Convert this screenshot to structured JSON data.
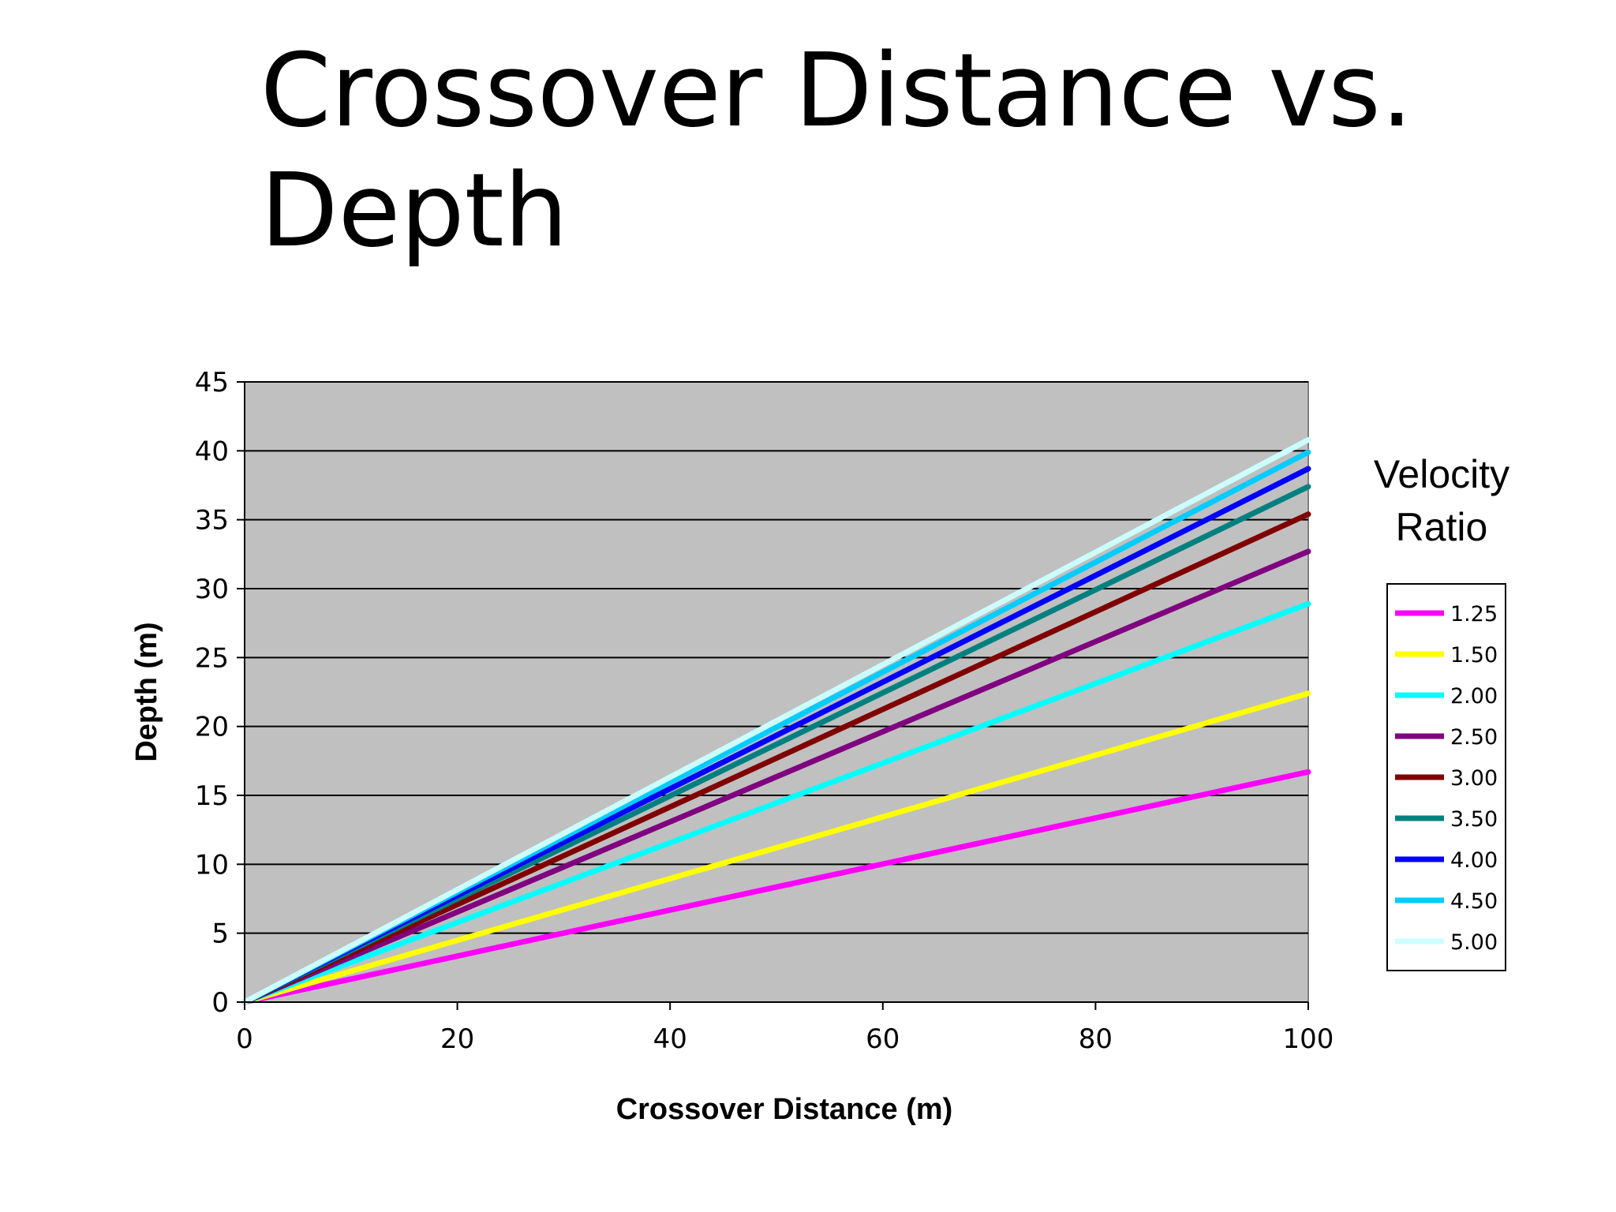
{
  "slide": {
    "title": "Crossover Distance vs. Depth"
  },
  "chart_data": {
    "type": "line",
    "title": "",
    "xlabel": "Crossover Distance (m)",
    "ylabel": "Depth (m)",
    "xlim": [
      0,
      100
    ],
    "ylim": [
      0,
      45
    ],
    "x_ticks": [
      "0",
      "20",
      "40",
      "60",
      "80",
      "100"
    ],
    "y_ticks": [
      "0",
      "5",
      "10",
      "15",
      "20",
      "25",
      "30",
      "35",
      "40",
      "45"
    ],
    "grid": "horizontal major gridlines",
    "plot_background": "#c0c0c0",
    "legend_title": [
      "Velocity",
      "Ratio"
    ],
    "legend_position": "right",
    "x": [
      0,
      100
    ],
    "series": [
      {
        "name": "1.25",
        "values": [
          0,
          16.7
        ],
        "color": "#ff00ff"
      },
      {
        "name": "1.50",
        "values": [
          0,
          22.4
        ],
        "color": "#ffff00"
      },
      {
        "name": "2.00",
        "values": [
          0,
          28.9
        ],
        "color": "#00ffff"
      },
      {
        "name": "2.50",
        "values": [
          0,
          32.7
        ],
        "color": "#800080"
      },
      {
        "name": "3.00",
        "values": [
          0,
          35.4
        ],
        "color": "#800000"
      },
      {
        "name": "3.50",
        "values": [
          0,
          37.4
        ],
        "color": "#008080"
      },
      {
        "name": "4.00",
        "values": [
          0,
          38.7
        ],
        "color": "#0000ff"
      },
      {
        "name": "4.50",
        "values": [
          0,
          39.9
        ],
        "color": "#00ccff"
      },
      {
        "name": "5.00",
        "values": [
          0,
          40.8
        ],
        "color": "#ccffff"
      }
    ]
  }
}
